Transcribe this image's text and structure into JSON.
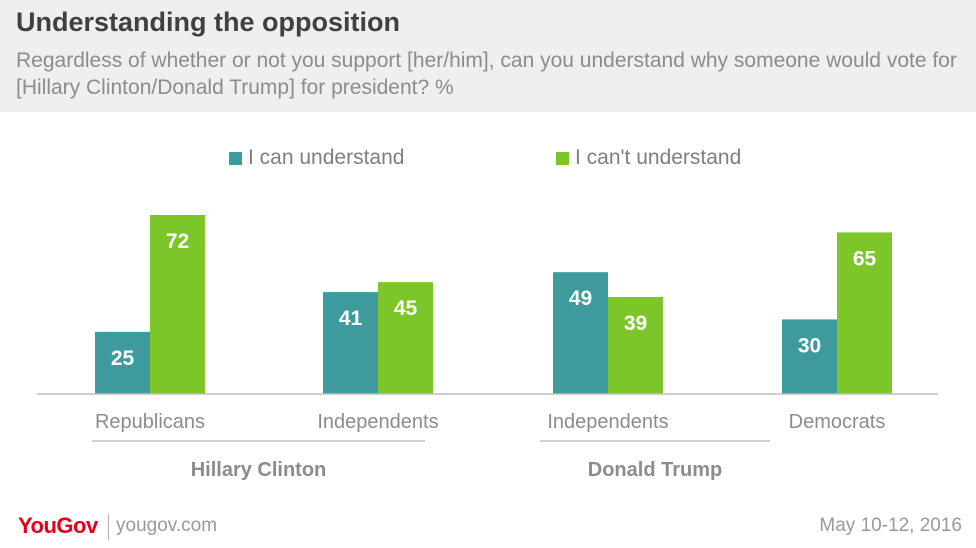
{
  "header": {
    "title": "Understanding the opposition",
    "subtitle": "Regardless of whether or not you support [her/him], can you understand why someone would vote for [Hillary Clinton/Donald Trump] for president? %"
  },
  "legend": [
    {
      "label": "I can understand",
      "color": "#3d9a9d"
    },
    {
      "label": "I can't understand",
      "color": "#7dc62a"
    }
  ],
  "chart_data": {
    "type": "bar",
    "categories": [
      "Republicans",
      "Independents",
      "Independents",
      "Democrats"
    ],
    "groups": [
      {
        "label": "Hillary Clinton",
        "categories": [
          0,
          1
        ]
      },
      {
        "label": "Donald Trump",
        "categories": [
          2,
          3
        ]
      }
    ],
    "series": [
      {
        "name": "I can understand",
        "color": "#3d9a9d",
        "values": [
          25,
          41,
          49,
          30
        ]
      },
      {
        "name": "I can't understand",
        "color": "#7dc62a",
        "values": [
          72,
          45,
          39,
          65
        ]
      }
    ],
    "ylim": [
      0,
      72
    ],
    "grid": false,
    "data_labels": true,
    "legend_position": "top"
  },
  "footer": {
    "brand": "YouGov",
    "site": "yougov.com",
    "date": "May 10-12, 2016"
  }
}
